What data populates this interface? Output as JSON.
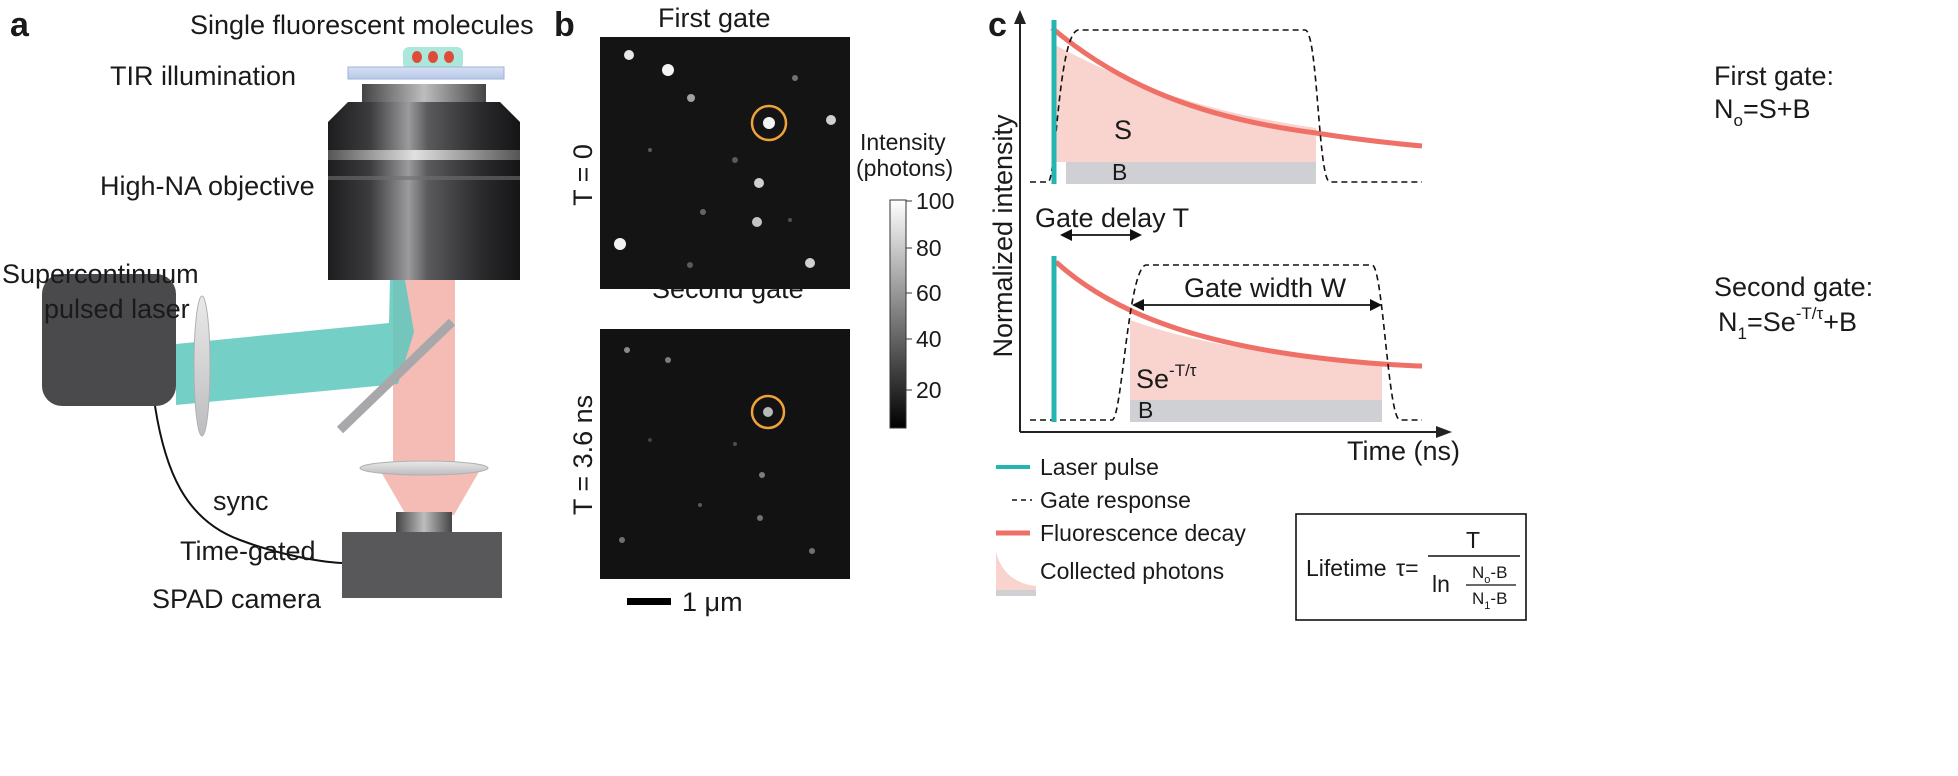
{
  "panels": {
    "a": {
      "letter": "a",
      "labels": {
        "molecules": "Single fluorescent molecules",
        "tir": "TIR illumination",
        "objective": "High-NA objective",
        "laser_line1": "Supercontinuum",
        "laser_line2": "pulsed laser",
        "sync": "sync",
        "camera_line1": "Time-gated",
        "camera_line2": "SPAD camera"
      }
    },
    "b": {
      "letter": "b",
      "first_gate_title": "First gate",
      "second_gate_title": "Second gate",
      "first_gate_time": "T = 0",
      "second_gate_time": "T = 3.6 ns",
      "colorbar_title_line1": "Intensity",
      "colorbar_title_line2": "(photons)",
      "colorbar_ticks": [
        "100",
        "80",
        "60",
        "40",
        "20"
      ],
      "colorbar_range": [
        0,
        100
      ],
      "scalebar_label": "1 μm"
    },
    "c": {
      "letter": "c",
      "ylabel": "Normalized intensity",
      "xlabel": "Time (ns)",
      "gate_delay_label": "Gate delay T",
      "gate_width_label": "Gate width W",
      "top_S": "S",
      "top_B": "B",
      "bottom_S": "Se",
      "bottom_S_exp": "-T/τ",
      "bottom_B": "B",
      "first_gate_title": "First gate:",
      "first_gate_eq_N": "N",
      "first_gate_eq_sub": "o",
      "first_gate_eq_rest": "=S+B",
      "second_gate_title": "Second gate:",
      "second_gate_eq_N": "N",
      "second_gate_eq_sub": "1",
      "second_gate_eq_mid": "=Se",
      "second_gate_eq_exp": "-T/τ",
      "second_gate_eq_end": "+B",
      "legend": {
        "laser": "Laser pulse",
        "gate": "Gate response",
        "decay": "Fluorescence decay",
        "collected": "Collected photons"
      },
      "lifetime": {
        "label": "Lifetime",
        "tau": "τ=",
        "numerator": "T",
        "ln": "ln",
        "frac_top_N": "N",
        "frac_top_sub": "o",
        "frac_top_rest": "-B",
        "frac_bot_N": "N",
        "frac_bot_sub": "1",
        "frac_bot_rest": "-B"
      }
    }
  },
  "colors": {
    "laser": "#24b5b0",
    "beam_excitation": "#5cc8bd",
    "beam_emission": "#f3b0a8",
    "decay": "#ee7067",
    "collected_fill": "#f9d3cd",
    "background_bar": "#cfd0d3",
    "camera_body": "#58585a",
    "laser_body": "#4a4a4c",
    "accent_circle": "#f0a23a"
  }
}
